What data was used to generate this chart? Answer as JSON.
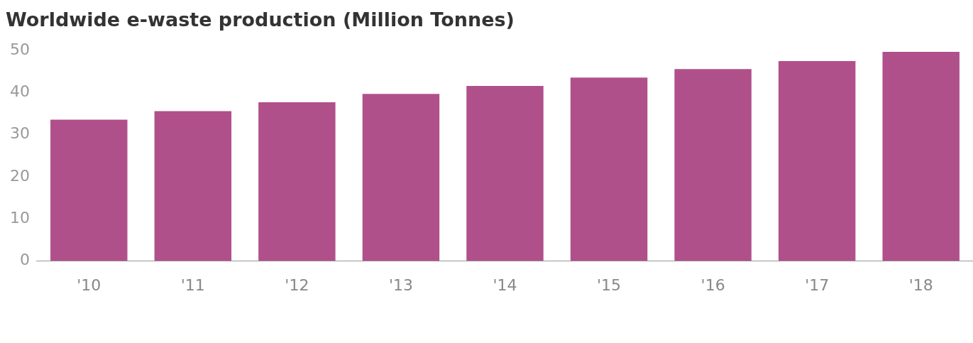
{
  "chart_data": {
    "type": "bar",
    "title": "Worldwide e-waste production (Million Tonnes)",
    "categories": [
      "'10",
      "'11",
      "'12",
      "'13",
      "'14",
      "'15",
      "'16",
      "'17",
      "'18"
    ],
    "values": [
      33.6,
      35.6,
      37.7,
      39.7,
      41.6,
      43.6,
      45.6,
      47.5,
      49.7
    ],
    "color": "#b0508a",
    "ylim": [
      0,
      50
    ],
    "yticks": [
      0,
      10,
      20,
      30,
      40,
      50
    ],
    "grid": false
  }
}
